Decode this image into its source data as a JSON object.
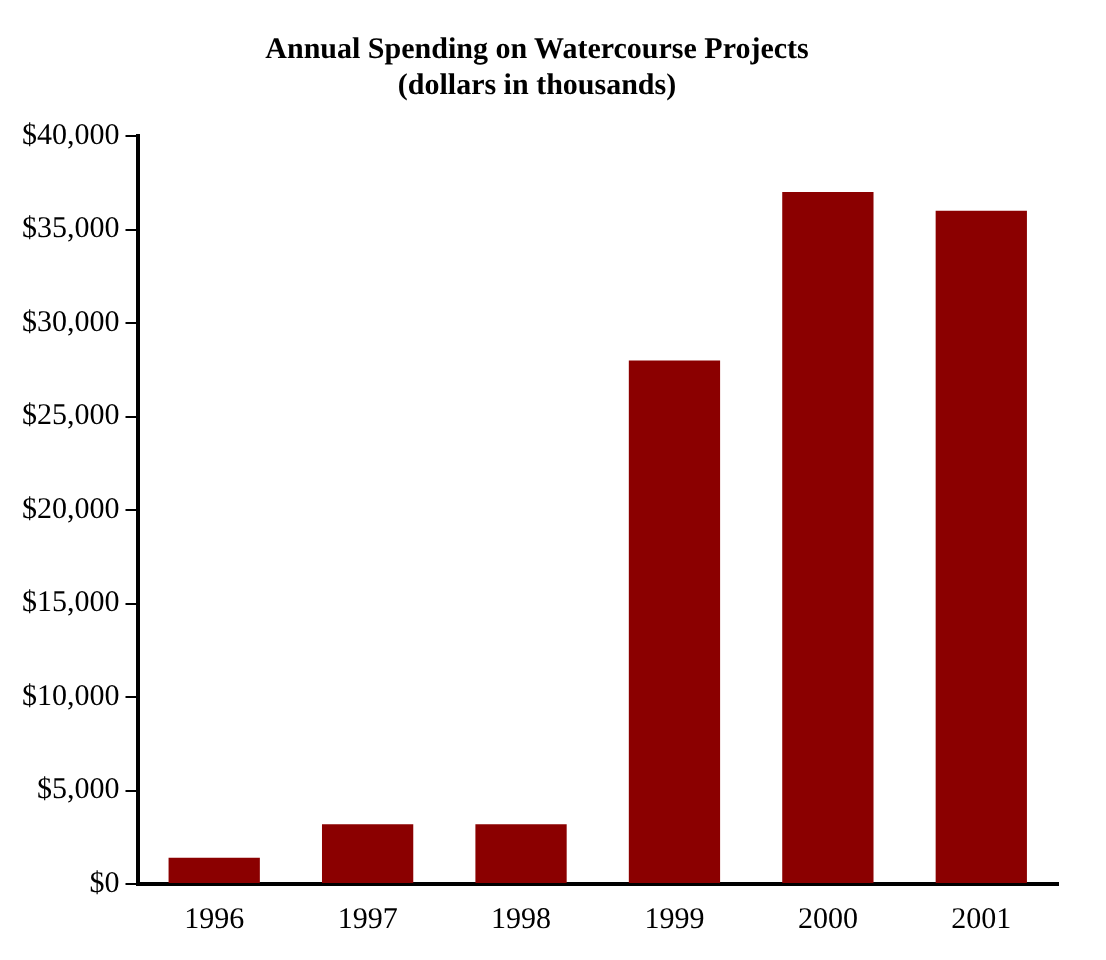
{
  "chart_data": {
    "type": "bar",
    "title": "Annual Spending on Watercourse Projects",
    "subtitle": "(dollars in thousands)",
    "categories": [
      "1996",
      "1997",
      "1998",
      "1999",
      "2000",
      "2001"
    ],
    "values": [
      1400,
      3200,
      3200,
      28000,
      37000,
      36000
    ],
    "color": "#8b0000",
    "ylim": [
      0,
      40000
    ],
    "yticks": [
      {
        "value": 0,
        "label": "$0"
      },
      {
        "value": 5000,
        "label": "$5,000"
      },
      {
        "value": 10000,
        "label": "$10,000"
      },
      {
        "value": 15000,
        "label": "$15,000"
      },
      {
        "value": 20000,
        "label": "$20,000"
      },
      {
        "value": 25000,
        "label": "$25,000"
      },
      {
        "value": 30000,
        "label": "$30,000"
      },
      {
        "value": 35000,
        "label": "$35,000"
      },
      {
        "value": 40000,
        "label": "$40,000"
      }
    ],
    "grid": false,
    "legend": false
  }
}
